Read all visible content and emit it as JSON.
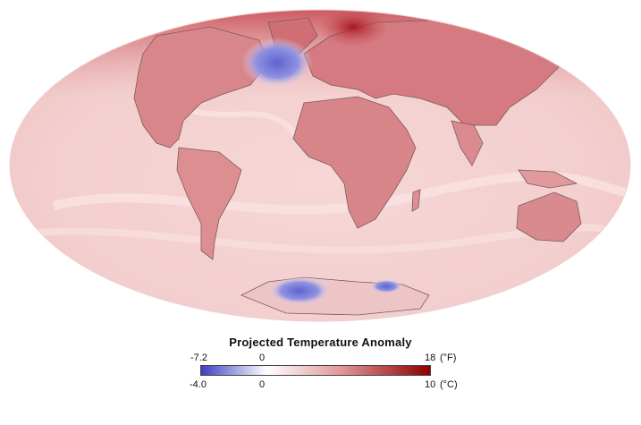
{
  "legend": {
    "title": "Projected Temperature Anomaly",
    "fahrenheit": {
      "min": "-7.2",
      "zero": "0",
      "max": "18",
      "unit": "(°F)"
    },
    "celsius": {
      "min": "-4.0",
      "zero": "0",
      "max": "10",
      "unit": "(°C)"
    },
    "colors": {
      "cold": "#3b3fc4",
      "neutral": "#ffffff",
      "warm": "#8b0000"
    }
  },
  "map": {
    "projection": "Mollweide",
    "base_color": "#f2c6c6",
    "land_color": "#d67d82",
    "cold_color": "#6a6fd6",
    "hot_color": "#b8262e"
  }
}
